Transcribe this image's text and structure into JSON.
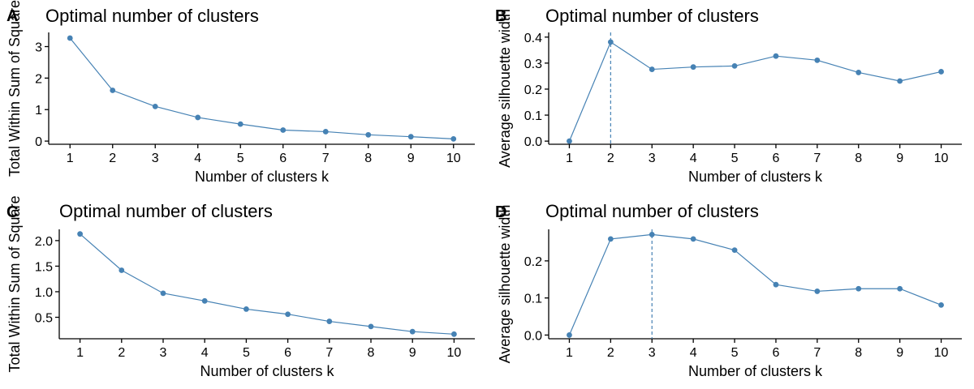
{
  "chart_data": [
    {
      "panel": "A",
      "type": "line",
      "title": "Optimal number of clusters",
      "xlabel": "Number of clusters k",
      "ylabel": "Total Within Sum of Square",
      "x": [
        1,
        2,
        3,
        4,
        5,
        6,
        7,
        8,
        9,
        10
      ],
      "series": [
        {
          "values": [
            3.27,
            1.61,
            1.1,
            0.75,
            0.54,
            0.35,
            0.3,
            0.2,
            0.14,
            0.07
          ]
        }
      ],
      "yticks": [
        0,
        1,
        2,
        3
      ],
      "ylim": [
        -0.1,
        3.45
      ],
      "grid": false,
      "color": "#4682B4"
    },
    {
      "panel": "B",
      "type": "line",
      "title": "Optimal number of clusters",
      "xlabel": "Number of clusters k",
      "ylabel": "Average silhouette width",
      "x": [
        1,
        2,
        3,
        4,
        5,
        6,
        7,
        8,
        9,
        10
      ],
      "series": [
        {
          "values": [
            0.0,
            0.381,
            0.276,
            0.285,
            0.289,
            0.327,
            0.311,
            0.264,
            0.231,
            0.267
          ]
        }
      ],
      "yticks": [
        0.0,
        0.1,
        0.2,
        0.3,
        0.4
      ],
      "ylim": [
        -0.012,
        0.418
      ],
      "optimal_k": 2,
      "grid": false,
      "color": "#4682B4"
    },
    {
      "panel": "C",
      "type": "line",
      "title": "Optimal number of clusters",
      "xlabel": "Number of clusters k",
      "ylabel": "Total Within Sum of Square",
      "x": [
        1,
        2,
        3,
        4,
        5,
        6,
        7,
        8,
        9,
        10
      ],
      "series": [
        {
          "values": [
            2.13,
            1.42,
            0.97,
            0.82,
            0.66,
            0.56,
            0.42,
            0.32,
            0.22,
            0.17
          ]
        }
      ],
      "yticks": [
        0.5,
        1.0,
        1.5,
        2.0
      ],
      "ylim": [
        0.08,
        2.22
      ],
      "grid": false,
      "color": "#4682B4"
    },
    {
      "panel": "D",
      "type": "line",
      "title": "Optimal number of clusters",
      "xlabel": "Number of clusters k",
      "ylabel": "Average silhouette width",
      "x": [
        1,
        2,
        3,
        4,
        5,
        6,
        7,
        8,
        9,
        10
      ],
      "series": [
        {
          "values": [
            0.0,
            0.259,
            0.271,
            0.259,
            0.229,
            0.136,
            0.118,
            0.125,
            0.125,
            0.081
          ]
        }
      ],
      "yticks": [
        0.0,
        0.1,
        0.2
      ],
      "ylim": [
        -0.01,
        0.285
      ],
      "optimal_k": 3,
      "grid": false,
      "color": "#4682B4"
    }
  ]
}
